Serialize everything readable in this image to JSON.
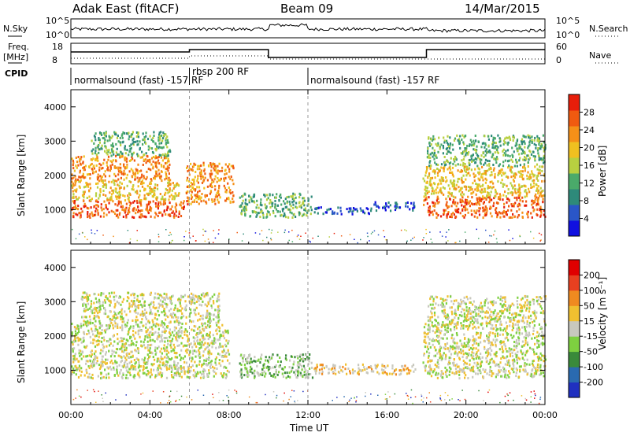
{
  "header": {
    "station": "Adak East (fitACF)",
    "beam": "Beam 09",
    "date": "14/Mar/2015"
  },
  "params": {
    "nsky_label": "N.Sky",
    "nsearch_label": "N.Search",
    "freq_label_1": "Freq.",
    "freq_label_2": "[MHz]",
    "nave_label": "Nave",
    "cpid_label": "CPID",
    "nsky_ticks": [
      "10^5",
      "10^0"
    ],
    "nsearch_ticks": [
      "10^5",
      "10^0"
    ],
    "freq_ticks": [
      "18",
      "8"
    ],
    "nave_ticks": [
      "60",
      "0"
    ]
  },
  "cpid_segments": [
    {
      "label": "normalsound (fast) -157 RF",
      "start_hour": 0,
      "end_hour": 6.0
    },
    {
      "label": "rbsp 200 RF",
      "start_hour": 6.0,
      "end_hour": 12.0
    },
    {
      "label": "normalsound (fast) -157 RF",
      "start_hour": 12.0,
      "end_hour": 24.0
    }
  ],
  "axes": {
    "xlabel": "Time UT",
    "x_ticks": [
      "00:00",
      "04:00",
      "08:00",
      "12:00",
      "16:00",
      "20:00",
      "00:00"
    ],
    "ylabel": "Slant Range [km]",
    "y_ticks": [
      "1000",
      "2000",
      "3000",
      "4000"
    ]
  },
  "power_colorbar": {
    "label": "Power [dB]",
    "ticks": [
      "4",
      "8",
      "12",
      "16",
      "20",
      "24",
      "28"
    ],
    "colors": [
      "#1010e0",
      "#2a56c8",
      "#2e8a7a",
      "#4aaa6a",
      "#b8d040",
      "#f0c020",
      "#f59018",
      "#f05a10",
      "#e81e0a"
    ]
  },
  "velocity_colorbar": {
    "label": "Velocity [m s⁻¹]",
    "ticks": [
      "200",
      "100",
      "50",
      "15",
      "-15",
      "-50",
      "-100",
      "-200"
    ],
    "colors": [
      "#2030c0",
      "#2a6ab0",
      "#3a8a3a",
      "#7ed040",
      "#c8c8be",
      "#f0c030",
      "#f08a20",
      "#e84020",
      "#e00000"
    ]
  },
  "chart_data": [
    {
      "type": "heatmap",
      "title": "Power",
      "x_unit": "hours UT",
      "y_unit": "km",
      "xlim": [
        0,
        24
      ],
      "ylim": [
        0,
        4500
      ],
      "regions": [
        {
          "x0": 0,
          "x1": 5.9,
          "y0": 800,
          "y1": 1300,
          "level": 7
        },
        {
          "x0": 0,
          "x1": 5.5,
          "y0": 1300,
          "y1": 1900,
          "level": 5
        },
        {
          "x0": 0,
          "x1": 5.0,
          "y0": 1900,
          "y1": 2600,
          "level": 6
        },
        {
          "x0": 1.0,
          "x1": 5.0,
          "y0": 2600,
          "y1": 3300,
          "level": 3
        },
        {
          "x0": 5.8,
          "x1": 8.2,
          "y0": 1200,
          "y1": 2400,
          "level": 6
        },
        {
          "x0": 8.5,
          "x1": 12.2,
          "y0": 800,
          "y1": 1500,
          "level": 3
        },
        {
          "x0": 12.2,
          "x1": 15.3,
          "y0": 900,
          "y1": 1100,
          "level": 1
        },
        {
          "x0": 15.3,
          "x1": 17.4,
          "y0": 1000,
          "y1": 1250,
          "level": 1
        },
        {
          "x0": 17.8,
          "x1": 24,
          "y0": 800,
          "y1": 1400,
          "level": 7
        },
        {
          "x0": 17.8,
          "x1": 24,
          "y0": 1400,
          "y1": 2300,
          "level": 5
        },
        {
          "x0": 18.0,
          "x1": 24,
          "y0": 2300,
          "y1": 3200,
          "level": 3
        }
      ]
    },
    {
      "type": "heatmap",
      "title": "Velocity",
      "x_unit": "hours UT",
      "y_unit": "km",
      "xlim": [
        0,
        24
      ],
      "ylim": [
        0,
        4500
      ],
      "regions": [
        {
          "x0": 0,
          "x1": 8.0,
          "y0": 800,
          "y1": 2400,
          "level": 4
        },
        {
          "x0": 0.5,
          "x1": 7.5,
          "y0": 2400,
          "y1": 3300,
          "level": 4
        },
        {
          "x0": 8.5,
          "x1": 12.2,
          "y0": 800,
          "y1": 1500,
          "level": 3
        },
        {
          "x0": 12.2,
          "x1": 17.4,
          "y0": 900,
          "y1": 1200,
          "level": 5
        },
        {
          "x0": 17.8,
          "x1": 24,
          "y0": 800,
          "y1": 2400,
          "level": 4
        },
        {
          "x0": 18.0,
          "x1": 24,
          "y0": 2400,
          "y1": 3200,
          "level": 4
        }
      ]
    }
  ]
}
